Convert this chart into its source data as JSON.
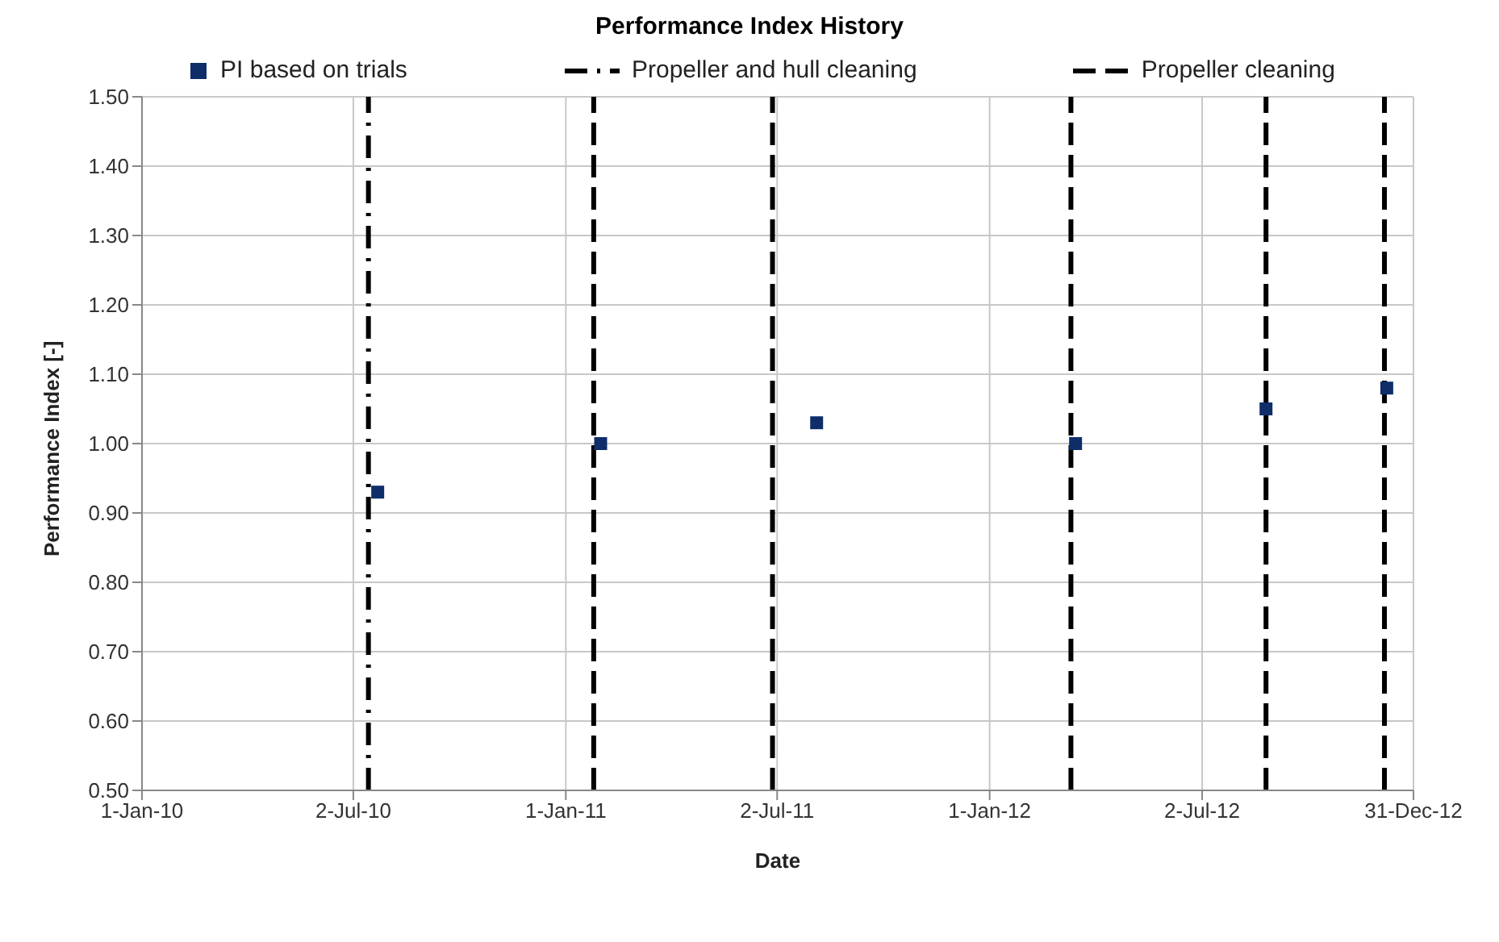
{
  "chart_data": {
    "type": "scatter",
    "title": "Performance Index History",
    "xlabel": "Date",
    "ylabel": "Performance Index [-]",
    "series": [
      {
        "name": "PI based on trials",
        "color": "#0f2d69",
        "x": [
          "2010-07-23",
          "2011-01-31",
          "2011-08-05",
          "2012-03-15",
          "2012-08-26",
          "2012-12-08"
        ],
        "values": [
          0.93,
          1.0,
          1.03,
          1.0,
          1.05,
          1.08
        ]
      }
    ],
    "marker": "square",
    "xlim": [
      "2010-01-01",
      "2012-12-31"
    ],
    "xticks": [
      {
        "value": "2010-01-01",
        "label": "1-Jan-10"
      },
      {
        "value": "2010-07-02",
        "label": "2-Jul-10"
      },
      {
        "value": "2011-01-01",
        "label": "1-Jan-11"
      },
      {
        "value": "2011-07-02",
        "label": "2-Jul-11"
      },
      {
        "value": "2012-01-01",
        "label": "1-Jan-12"
      },
      {
        "value": "2012-07-02",
        "label": "2-Jul-12"
      },
      {
        "value": "2012-12-31",
        "label": "31-Dec-12"
      }
    ],
    "ylim": [
      0.5,
      1.5
    ],
    "yticks": [
      {
        "value": 0.5,
        "label": "0.50"
      },
      {
        "value": 0.6,
        "label": "0.60"
      },
      {
        "value": 0.7,
        "label": "0.70"
      },
      {
        "value": 0.8,
        "label": "0.80"
      },
      {
        "value": 0.9,
        "label": "0.90"
      },
      {
        "value": 1.0,
        "label": "1.00"
      },
      {
        "value": 1.1,
        "label": "1.10"
      },
      {
        "value": 1.2,
        "label": "1.20"
      },
      {
        "value": 1.3,
        "label": "1.30"
      },
      {
        "value": 1.4,
        "label": "1.40"
      },
      {
        "value": 1.5,
        "label": "1.50"
      }
    ],
    "ref_lines": [
      {
        "axis": "x",
        "value": "2010-07-15",
        "label": "Propeller and hull cleaning",
        "color": "#000000",
        "line_style": "dashdot"
      },
      {
        "axis": "x",
        "value": "2011-01-25",
        "label": "Propeller cleaning",
        "color": "#000000",
        "line_style": "dashed"
      },
      {
        "axis": "x",
        "value": "2011-06-28",
        "color": "#000000",
        "line_style": "dashed"
      },
      {
        "axis": "x",
        "value": "2012-03-11",
        "color": "#000000",
        "line_style": "dashed"
      },
      {
        "axis": "x",
        "value": "2012-08-26",
        "color": "#000000",
        "line_style": "dashed"
      },
      {
        "axis": "x",
        "value": "2012-12-06",
        "color": "#000000",
        "line_style": "dashed"
      }
    ],
    "grid": true,
    "legend": "top"
  }
}
